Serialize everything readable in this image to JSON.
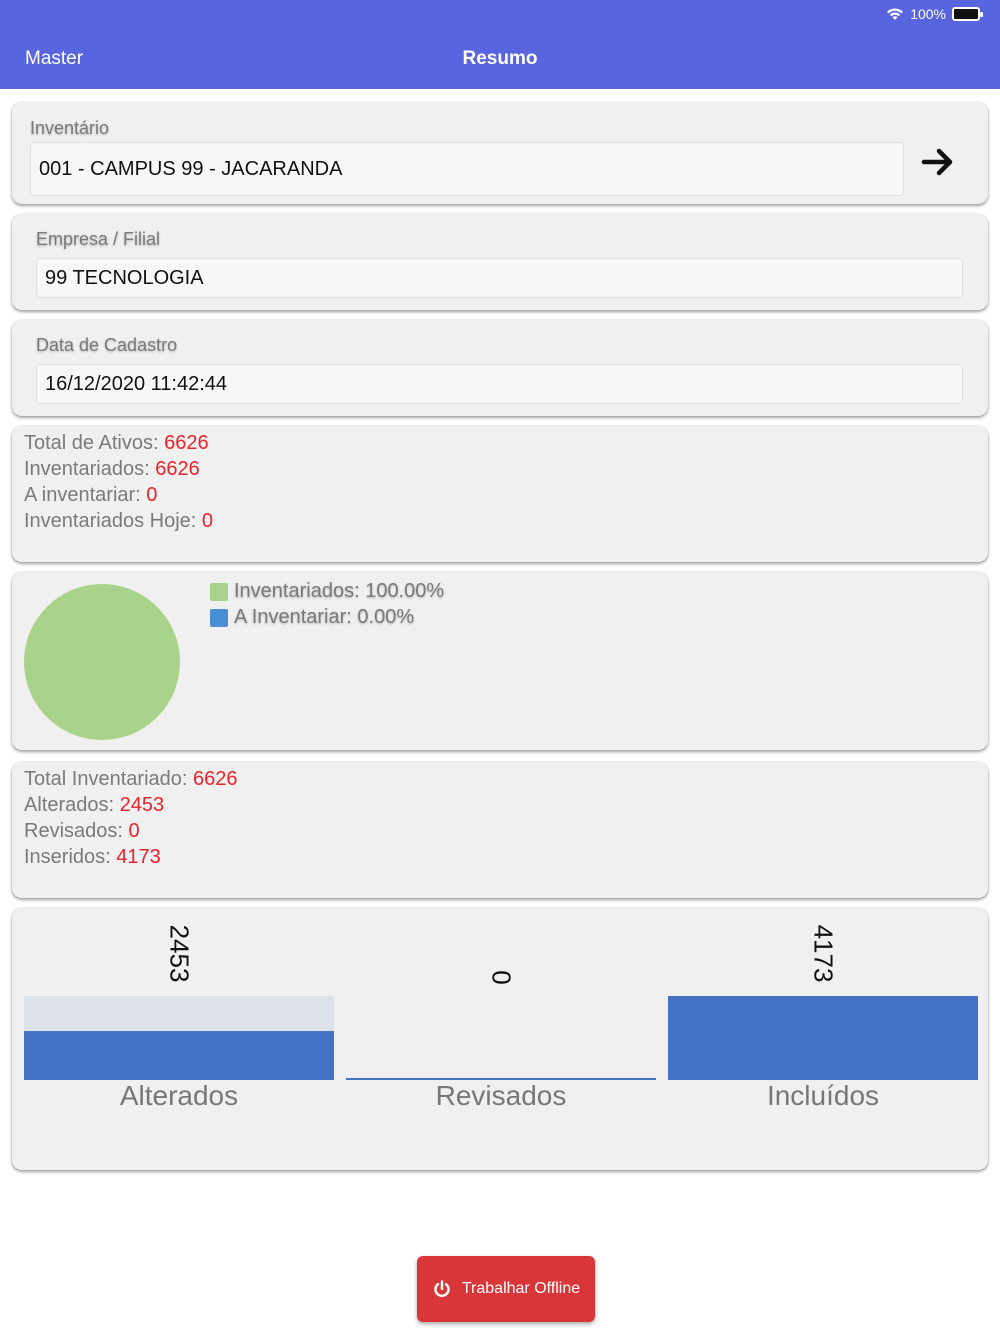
{
  "status_bar": {
    "battery": "100%",
    "icons": [
      "wifi-icon",
      "battery-icon"
    ]
  },
  "nav": {
    "back_label": "Master",
    "title": "Resumo"
  },
  "inventario": {
    "label": "Inventário",
    "value": "001 - CAMPUS 99 - JACARANDA",
    "action_icon": "arrow-right-icon"
  },
  "empresa": {
    "label": "Empresa / Filial",
    "value": "99 TECNOLOGIA"
  },
  "data_cadastro": {
    "label": "Data de Cadastro",
    "value": "16/12/2020 11:42:44"
  },
  "ativos": {
    "total_label": "Total de Ativos: ",
    "total_value": "6626",
    "inventariados_label": "Inventariados: ",
    "inventariados_value": "6626",
    "a_inventariar_label": "A inventariar: ",
    "a_inventariar_value": "0",
    "hoje_label": "Inventariados Hoje: ",
    "hoje_value": "0"
  },
  "pie": {
    "legend": [
      {
        "label": "Inventariados: 100.00%",
        "color": "#A9D38A"
      },
      {
        "label": "A Inventariar: 0.00%",
        "color": "#4A8FD6"
      }
    ]
  },
  "resumo": {
    "total_label": "Total Inventariado: ",
    "total_value": "6626",
    "alterados_label": "Alterados: ",
    "alterados_value": "2453",
    "revisados_label": "Revisados: ",
    "revisados_value": "0",
    "inseridos_label": "Inseridos: ",
    "inseridos_value": "4173"
  },
  "chart_data": {
    "type": "bar",
    "categories": [
      "Alterados",
      "Revisados",
      "Incluídos"
    ],
    "values": [
      2453,
      0,
      4173
    ],
    "value_labels": [
      "2453",
      "0",
      "4173"
    ],
    "ylim": [
      0,
      4173
    ],
    "bar_color": "#4472C4",
    "background_bar_color": "#DDE1EA"
  },
  "offline_button": {
    "label": "Trabalhar Offline",
    "icon": "power-icon"
  }
}
